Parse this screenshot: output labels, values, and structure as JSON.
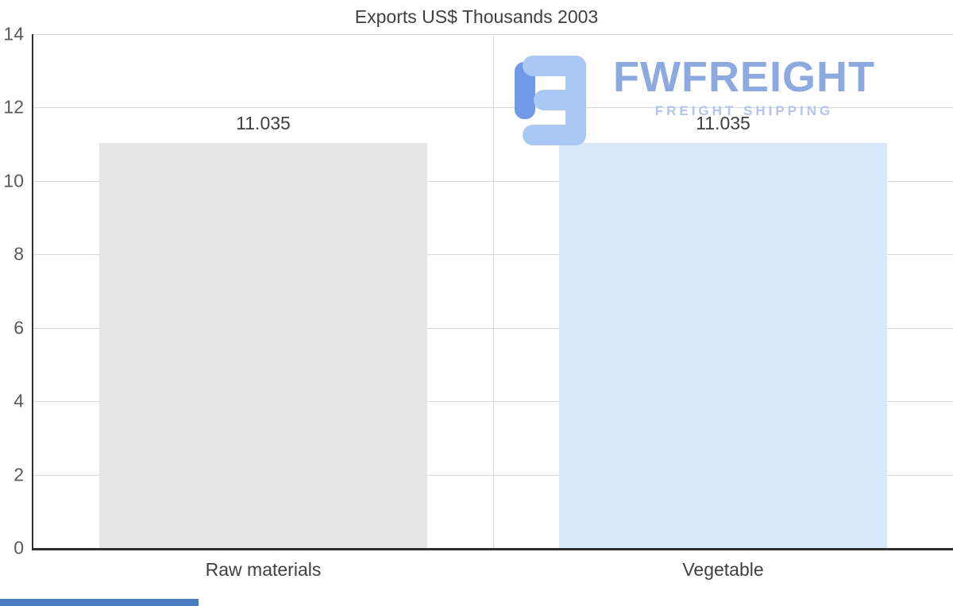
{
  "chart_data": {
    "type": "bar",
    "title": "Exports US$ Thousands 2003",
    "categories": [
      "Raw materials",
      "Vegetable"
    ],
    "values": [
      11.035,
      11.035
    ],
    "value_labels": [
      "11.035",
      "11.035"
    ],
    "bar_colors": [
      "#e6e6e6",
      "#d7e9fb"
    ],
    "ylim": [
      0,
      14
    ],
    "yticks": [
      0,
      2,
      4,
      6,
      8,
      10,
      12,
      14
    ],
    "grid": true,
    "legend": "none",
    "bar_width_ratio": 0.715,
    "xlabel": "",
    "ylabel": ""
  },
  "watermark": {
    "brand": "FWFREIGHT",
    "tagline": "FREIGHT SHIPPING"
  },
  "theme": {
    "title_text": "#404040",
    "tick_text": "#595959",
    "label_text": "#404040",
    "grid_line": "#d9d9d9",
    "axis_line": "#2e2e2e",
    "brand_blue": "#8ca9e0",
    "brand_light": "#b3c5ec",
    "logo_light": "#a9c8f4",
    "logo_dark": "#7099e8",
    "accent_strip": "#4a7cc2"
  }
}
